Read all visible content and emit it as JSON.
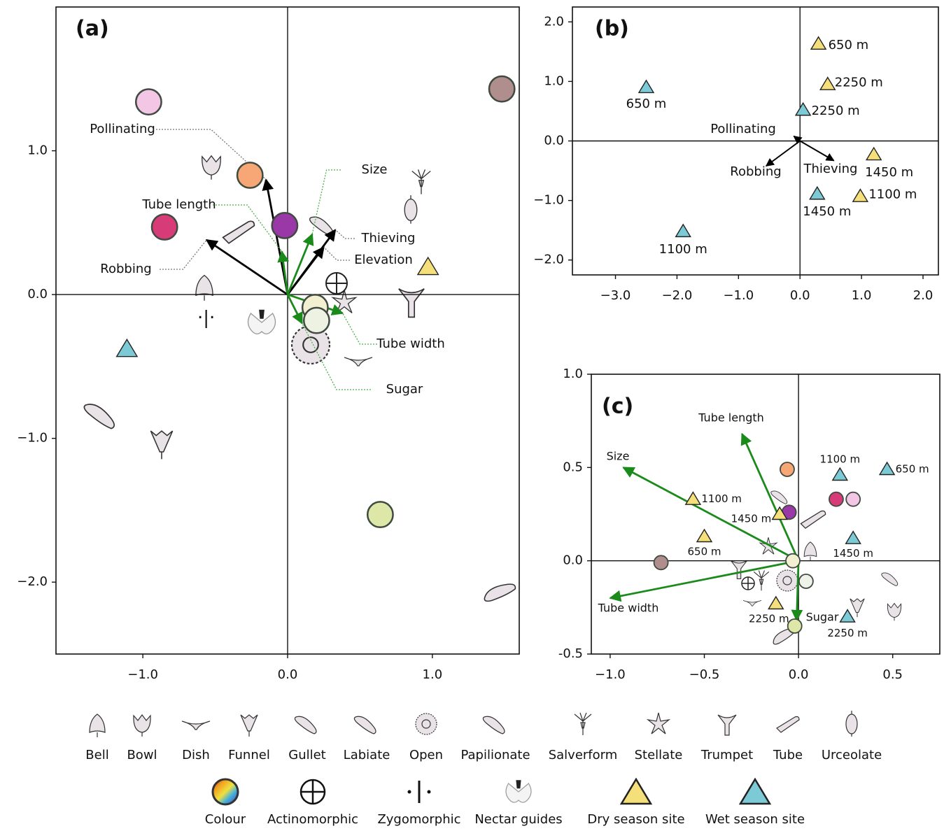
{
  "chart_data": [
    {
      "type": "scatter",
      "title": "(a)",
      "xlim": [
        -1.6,
        1.6
      ],
      "ylim": [
        -2.5,
        2.0
      ],
      "xticks": [
        {
          "value": -1,
          "label": "−1.0"
        },
        {
          "value": 0,
          "label": "0.0"
        },
        {
          "value": 1,
          "label": "1.0"
        }
      ],
      "yticks": [
        {
          "value": -2,
          "label": "−2.0"
        },
        {
          "value": -1,
          "label": "−1.0"
        },
        {
          "value": 0,
          "label": "0.0"
        },
        {
          "value": 1,
          "label": "1.0"
        }
      ],
      "points": {
        "x": [
          -0.96,
          -0.26,
          -0.85,
          -0.02,
          1.48,
          0.64,
          0.19,
          0.2
        ],
        "y": [
          1.34,
          0.83,
          0.47,
          0.48,
          1.43,
          -1.53,
          -0.09,
          -0.18
        ],
        "colors": [
          "#f2c6e4",
          "#f7a775",
          "#d83c78",
          "#9b38a8",
          "#b08e8e",
          "#dde8a8",
          "#f2f0d0",
          "#eef2e2"
        ]
      },
      "dry_sites": {
        "x": [
          0.97
        ],
        "y": [
          0.19
        ]
      },
      "wet_sites": {
        "x": [
          -1.11
        ],
        "y": [
          -0.38
        ]
      },
      "arrows": [
        {
          "label": "Pollinating",
          "x": -0.15,
          "y": 0.8,
          "color": "#000000"
        },
        {
          "label": "Robbing",
          "x": -0.56,
          "y": 0.38,
          "color": "#000000"
        },
        {
          "label": "Thieving",
          "x": 0.33,
          "y": 0.45,
          "color": "#000000"
        },
        {
          "label": "Elevation",
          "x": 0.25,
          "y": 0.33,
          "color": "#000000"
        },
        {
          "label": "Size",
          "x": 0.17,
          "y": 0.42,
          "color": "#1a8a1a"
        },
        {
          "label": "Tube length",
          "x": -0.04,
          "y": 0.3,
          "color": "#1a8a1a"
        },
        {
          "label": "Tube width",
          "x": 0.38,
          "y": -0.13,
          "color": "#1a8a1a"
        },
        {
          "label": "Sugar",
          "x": 0.1,
          "y": -0.2,
          "color": "#1a8a1a"
        }
      ]
    },
    {
      "type": "scatter",
      "title": "(b)",
      "xlim": [
        -3.7,
        2.25
      ],
      "ylim": [
        -2.25,
        2.25
      ],
      "xticks": [
        {
          "value": -3,
          "label": "−3.0"
        },
        {
          "value": -2,
          "label": "−2.0"
        },
        {
          "value": -1,
          "label": "−1.0"
        },
        {
          "value": 0,
          "label": "0.0"
        },
        {
          "value": 1,
          "label": "1.0"
        },
        {
          "value": 2,
          "label": "2.0"
        }
      ],
      "yticks": [
        {
          "value": -2,
          "label": "−2.0"
        },
        {
          "value": -1,
          "label": "−1.0"
        },
        {
          "value": 0,
          "label": "0.0"
        },
        {
          "value": 1,
          "label": "1.0"
        },
        {
          "value": 2,
          "label": "2.0"
        }
      ],
      "dry_sites": {
        "x": [
          0.3,
          0.45,
          1.2,
          0.98
        ],
        "y": [
          1.63,
          0.95,
          -0.23,
          -0.93
        ],
        "labels": [
          "650 m",
          "2250 m",
          "1450 m",
          "1100 m"
        ]
      },
      "wet_sites": {
        "x": [
          -2.5,
          0.05,
          0.28,
          -1.9
        ],
        "y": [
          0.9,
          0.52,
          -0.89,
          -1.52
        ],
        "labels": [
          "650 m",
          "2250 m",
          "1450 m",
          "1100 m"
        ]
      },
      "arrows": [
        {
          "label": "Pollinating",
          "x": -0.1,
          "y": 0.08,
          "color": "#000000"
        },
        {
          "label": "Robbing",
          "x": -0.55,
          "y": -0.42,
          "color": "#000000"
        },
        {
          "label": "Thieving",
          "x": 0.55,
          "y": -0.33,
          "color": "#000000"
        }
      ]
    },
    {
      "type": "scatter",
      "title": "(c)",
      "xlim": [
        -1.1,
        0.75
      ],
      "ylim": [
        -0.5,
        1.0
      ],
      "xticks": [
        {
          "value": -1,
          "label": "−1.0"
        },
        {
          "value": -0.5,
          "label": "−0.5"
        },
        {
          "value": 0,
          "label": "0.0"
        },
        0.5
      ],
      "yticks": [
        -0.5,
        {
          "value": 0,
          "label": "0.0"
        },
        0.5,
        {
          "value": 1,
          "label": "1.0"
        }
      ],
      "points": {
        "x": [
          -0.06,
          0.2,
          0.29,
          -0.05,
          -0.73,
          0.04,
          -0.02,
          -0.03
        ],
        "y": [
          0.49,
          0.33,
          0.33,
          0.26,
          -0.01,
          -0.11,
          -0.35,
          0.0
        ],
        "colors": [
          "#f7a775",
          "#d83c78",
          "#f2c6e4",
          "#9b38a8",
          "#b08e8e",
          "#eef2e8",
          "#dde8a8",
          "#f2f0d0"
        ]
      },
      "dry_sites": {
        "x": [
          -0.56,
          -0.1,
          -0.5,
          -0.12
        ],
        "y": [
          0.33,
          0.25,
          0.13,
          -0.23
        ],
        "labels": [
          "1100 m",
          "1450 m",
          "650 m",
          "2250 m"
        ]
      },
      "wet_sites": {
        "x": [
          0.22,
          0.47,
          0.29,
          0.26
        ],
        "y": [
          0.46,
          0.49,
          0.12,
          -0.3
        ],
        "labels": [
          "1100 m",
          "650 m",
          "1450 m",
          "2250 m"
        ]
      },
      "arrows": [
        {
          "label": "Tube length",
          "x": -0.3,
          "y": 0.68,
          "color": "#1a8a1a"
        },
        {
          "label": "Size",
          "x": -0.93,
          "y": 0.5,
          "color": "#1a8a1a"
        },
        {
          "label": "Tube width",
          "x": -1.0,
          "y": -0.2,
          "color": "#1a8a1a"
        },
        {
          "label": "Sugar",
          "x": -0.01,
          "y": -0.32,
          "color": "#1a8a1a"
        }
      ]
    }
  ],
  "legend": {
    "flower_types": [
      "Bell",
      "Bowl",
      "Dish",
      "Funnel",
      "Gullet",
      "Labiate",
      "Open",
      "Papilionate",
      "Salverform",
      "Stellate",
      "Trumpet",
      "Tube",
      "Urceolate"
    ],
    "symbols": [
      "Colour",
      "Actinomorphic",
      "Zygomorphic",
      "Nectar guides",
      "Dry season site",
      "Wet season site"
    ],
    "dry_color": "#f5df7a",
    "wet_color": "#7ccad6"
  }
}
